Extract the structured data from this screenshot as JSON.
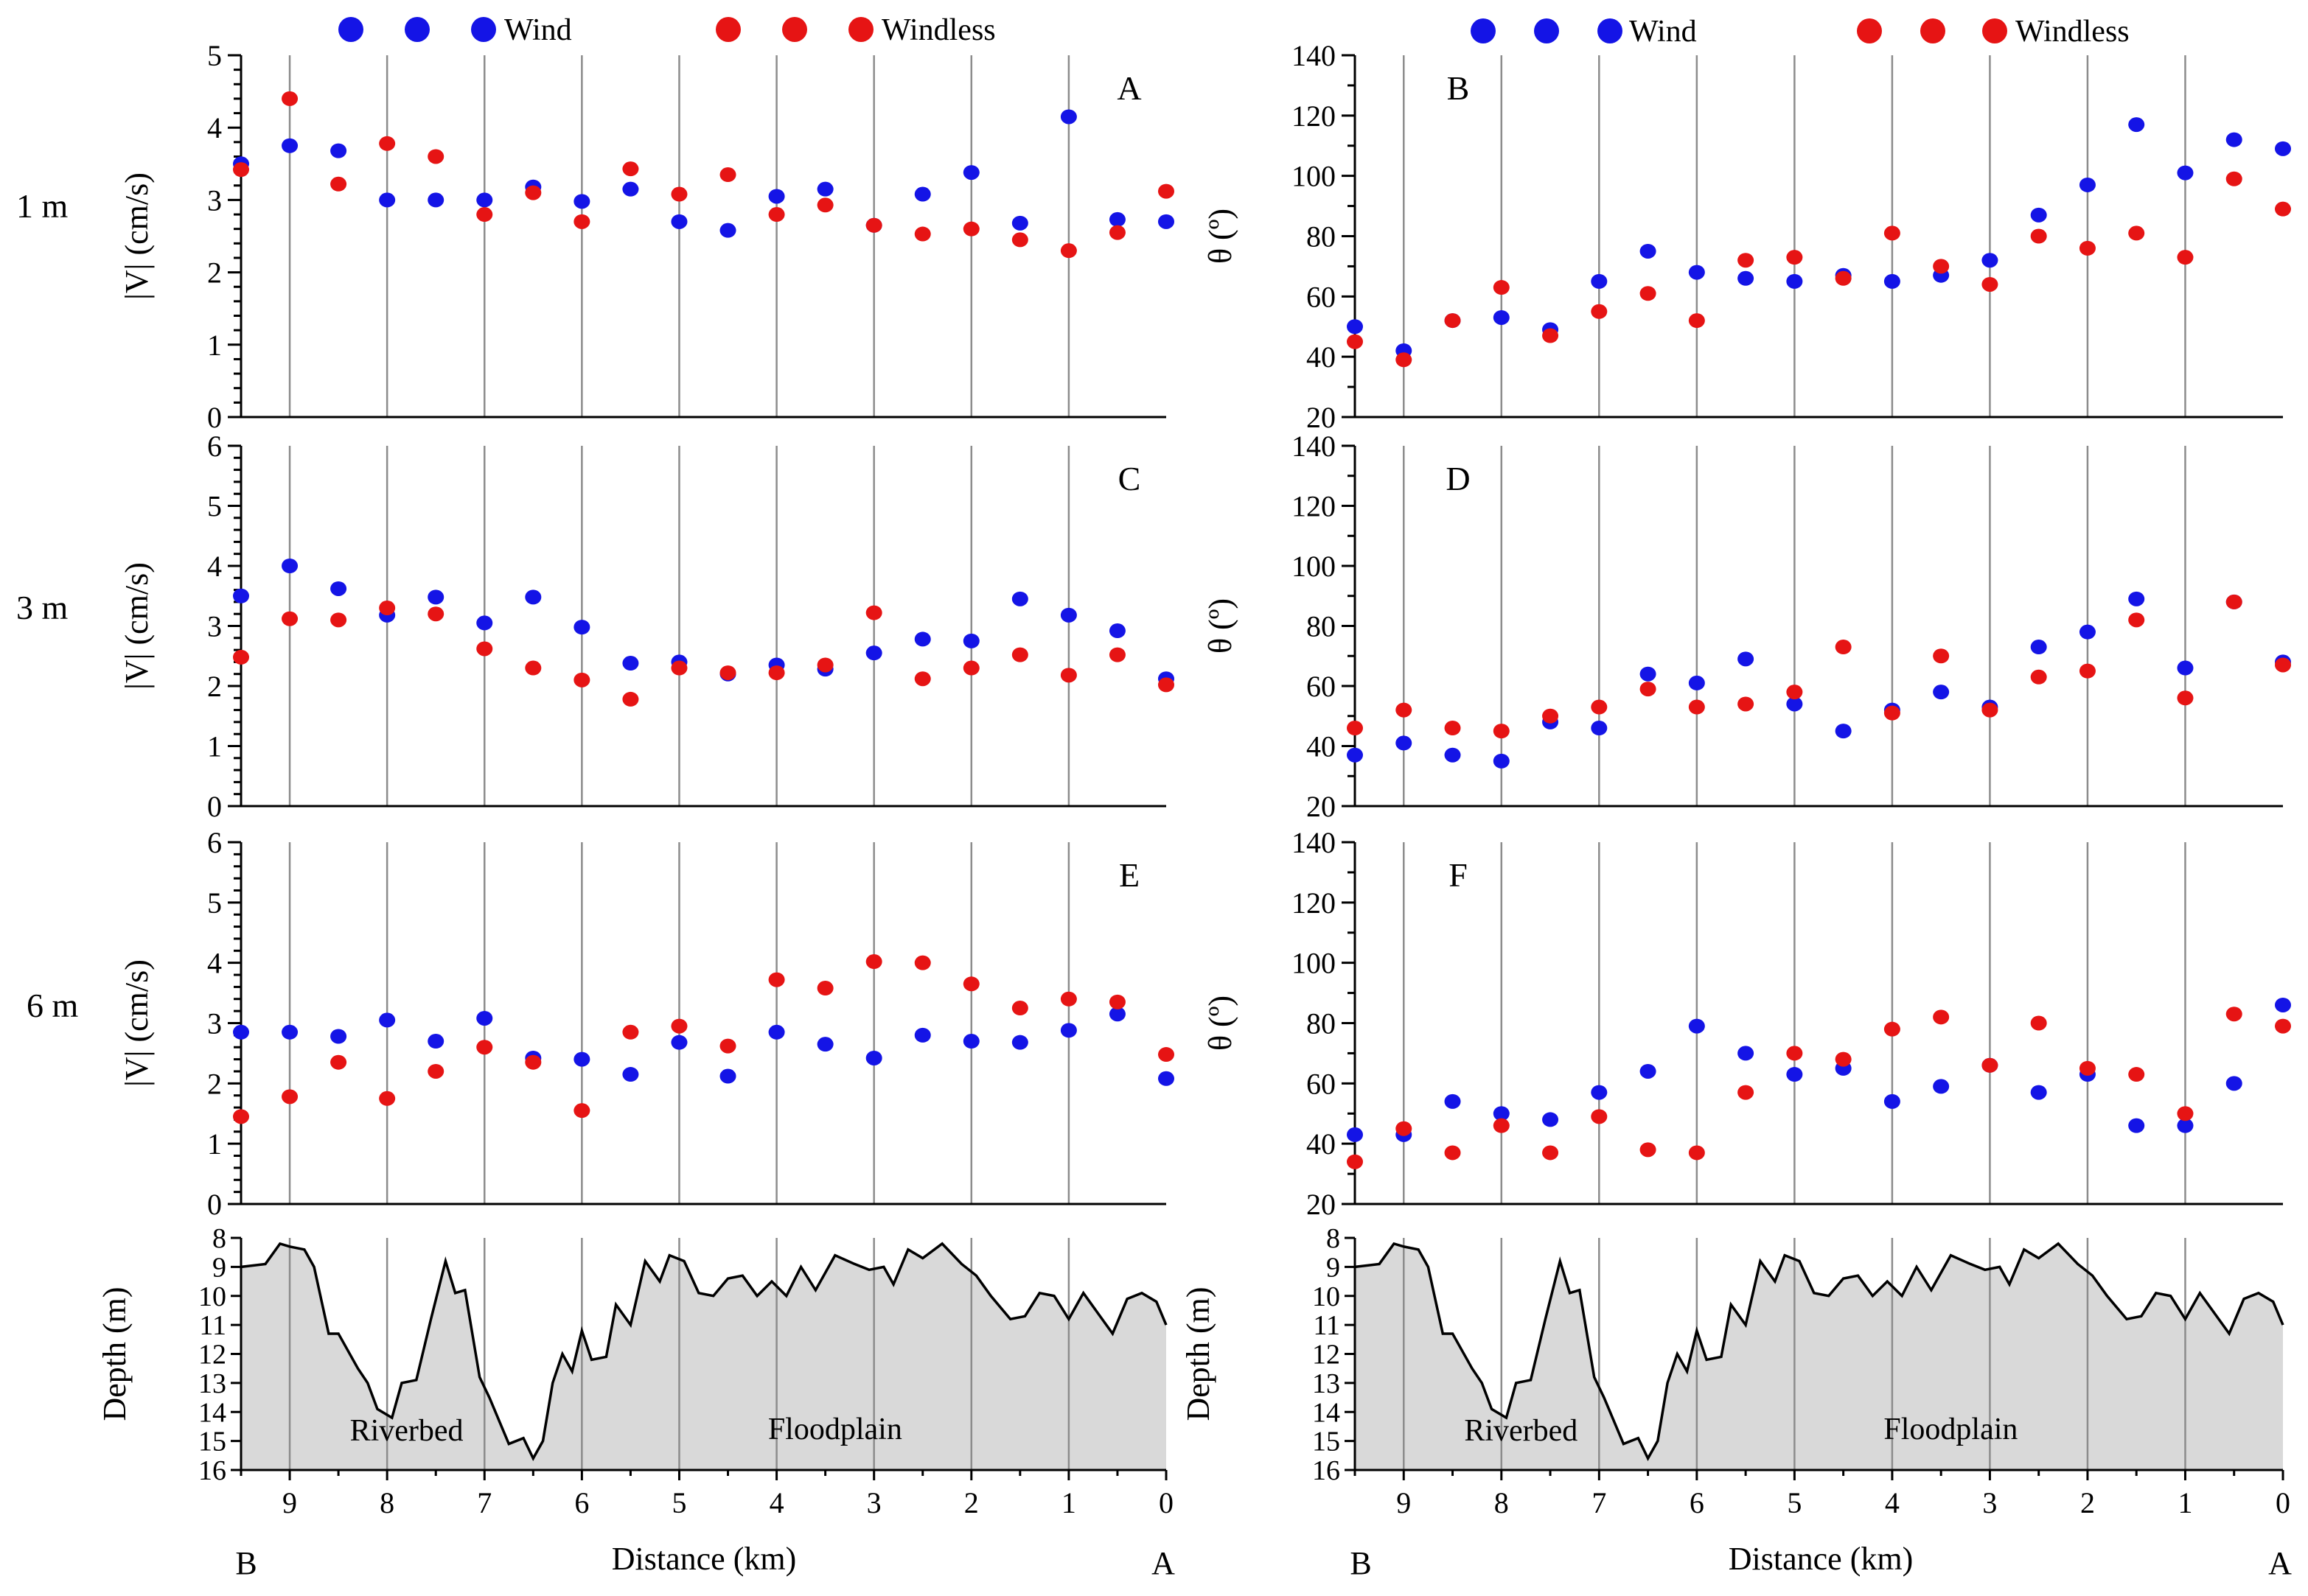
{
  "legend": {
    "wind_label": "Wind",
    "windless_label": "Windless",
    "wind_color": "#1414e6",
    "windless_color": "#e61414"
  },
  "row_labels": [
    "1 m",
    "3 m",
    "6 m"
  ],
  "shared": {
    "xlabel": "Distance (km)",
    "x_ticks": [
      9,
      8,
      7,
      6,
      5,
      4,
      3,
      2,
      1,
      0
    ],
    "end_labels": {
      "left": "B",
      "right": "A",
      "color": "#e61414"
    },
    "xlim": [
      9.5,
      0
    ],
    "x_positions": [
      9.5,
      9.0,
      8.5,
      8.0,
      7.5,
      7.0,
      6.5,
      6.0,
      5.5,
      5.0,
      4.5,
      4.0,
      3.5,
      3.0,
      2.5,
      2.0,
      1.5,
      1.0,
      0.5,
      0.0
    ]
  },
  "chart_data": [
    {
      "id": "A",
      "type": "scatter",
      "panel_label": "A",
      "ylabel": "|V| (cm/s)",
      "ylim": [
        0,
        5
      ],
      "y_ticks": [
        0,
        1,
        2,
        3,
        4,
        5
      ],
      "series": [
        {
          "name": "Wind",
          "values": [
            3.5,
            3.75,
            3.68,
            3.0,
            3.0,
            3.0,
            3.18,
            2.98,
            3.15,
            2.7,
            2.58,
            3.05,
            3.15,
            2.65,
            3.08,
            3.38,
            2.68,
            4.15,
            2.73,
            2.7
          ]
        },
        {
          "name": "Windless",
          "values": [
            3.42,
            4.4,
            3.22,
            3.78,
            3.6,
            2.8,
            3.1,
            2.7,
            3.43,
            3.08,
            3.35,
            2.8,
            2.93,
            2.65,
            2.53,
            2.6,
            2.45,
            2.3,
            2.55,
            3.12
          ]
        }
      ]
    },
    {
      "id": "B",
      "type": "scatter",
      "panel_label": "B",
      "ylabel": "θ (º)",
      "ylim": [
        20,
        140
      ],
      "y_ticks": [
        20,
        40,
        60,
        80,
        100,
        120,
        140
      ],
      "series": [
        {
          "name": "Wind",
          "values": [
            50,
            42,
            52,
            53,
            49,
            65,
            75,
            68,
            66,
            65,
            67,
            65,
            67,
            72,
            87,
            97,
            117,
            101,
            112,
            109
          ]
        },
        {
          "name": "Windless",
          "values": [
            45,
            39,
            52,
            63,
            47,
            55,
            61,
            52,
            72,
            73,
            66,
            81,
            70,
            64,
            80,
            76,
            81,
            73,
            99,
            89
          ]
        }
      ]
    },
    {
      "id": "C",
      "type": "scatter",
      "panel_label": "C",
      "ylabel": "|V| (cm/s)",
      "ylim": [
        0,
        6
      ],
      "y_ticks": [
        0,
        1,
        2,
        3,
        4,
        5,
        6
      ],
      "series": [
        {
          "name": "Wind",
          "values": [
            3.5,
            4.0,
            3.62,
            3.18,
            3.48,
            3.05,
            3.48,
            2.98,
            2.38,
            2.4,
            2.2,
            2.35,
            2.28,
            2.55,
            2.78,
            2.75,
            3.45,
            3.18,
            2.92,
            2.12
          ]
        },
        {
          "name": "Windless",
          "values": [
            2.48,
            3.12,
            3.1,
            3.3,
            3.2,
            2.62,
            2.3,
            2.1,
            1.78,
            2.3,
            2.22,
            2.22,
            2.35,
            3.22,
            2.12,
            2.3,
            2.52,
            2.18,
            2.52,
            2.02
          ]
        }
      ]
    },
    {
      "id": "D",
      "type": "scatter",
      "panel_label": "D",
      "ylabel": "θ (º)",
      "ylim": [
        20,
        140
      ],
      "y_ticks": [
        20,
        40,
        60,
        80,
        100,
        120,
        140
      ],
      "series": [
        {
          "name": "Wind",
          "values": [
            37,
            41,
            37,
            35,
            48,
            46,
            64,
            61,
            69,
            54,
            45,
            52,
            58,
            53,
            73,
            78,
            89,
            66,
            88,
            68
          ]
        },
        {
          "name": "Windless",
          "values": [
            46,
            52,
            46,
            45,
            50,
            53,
            59,
            53,
            54,
            58,
            73,
            51,
            70,
            52,
            63,
            65,
            82,
            56,
            88,
            67
          ]
        }
      ]
    },
    {
      "id": "E",
      "type": "scatter",
      "panel_label": "E",
      "ylabel": "|V| (cm/s)",
      "ylim": [
        0,
        6
      ],
      "y_ticks": [
        0,
        1,
        2,
        3,
        4,
        5,
        6
      ],
      "series": [
        {
          "name": "Wind",
          "values": [
            2.85,
            2.85,
            2.78,
            3.05,
            2.7,
            3.08,
            2.42,
            2.4,
            2.15,
            2.68,
            2.12,
            2.85,
            2.65,
            2.42,
            2.8,
            2.7,
            2.68,
            2.88,
            3.15,
            2.08
          ]
        },
        {
          "name": "Windless",
          "values": [
            1.45,
            1.78,
            2.35,
            1.75,
            2.2,
            2.6,
            2.35,
            1.55,
            2.85,
            2.95,
            2.62,
            3.72,
            3.58,
            4.02,
            4.0,
            3.65,
            3.25,
            3.4,
            3.35,
            2.48
          ]
        }
      ]
    },
    {
      "id": "F",
      "type": "scatter",
      "panel_label": "F",
      "ylabel": "θ (º)",
      "ylim": [
        20,
        140
      ],
      "y_ticks": [
        20,
        40,
        60,
        80,
        100,
        120,
        140
      ],
      "series": [
        {
          "name": "Wind",
          "values": [
            43,
            43,
            54,
            50,
            48,
            57,
            64,
            79,
            70,
            63,
            65,
            54,
            59,
            66,
            57,
            63,
            46,
            46,
            60,
            86
          ]
        },
        {
          "name": "Windless",
          "values": [
            34,
            45,
            37,
            46,
            37,
            49,
            38,
            37,
            57,
            70,
            68,
            78,
            82,
            66,
            80,
            65,
            63,
            50,
            83,
            79
          ]
        }
      ]
    },
    {
      "id": "depth-left",
      "type": "area",
      "ylabel": "Depth (m)",
      "xlabel": "Distance (km)",
      "ylim": [
        16,
        8
      ],
      "y_ticks": [
        8,
        9,
        10,
        11,
        12,
        13,
        14,
        15,
        16
      ],
      "region_labels": [
        "Riverbed",
        "Floodplain"
      ],
      "x": [
        9.5,
        9.25,
        9.1,
        9.0,
        8.85,
        8.75,
        8.6,
        8.5,
        8.3,
        8.2,
        8.1,
        7.95,
        7.85,
        7.7,
        7.55,
        7.4,
        7.3,
        7.2,
        7.05,
        6.95,
        6.75,
        6.6,
        6.5,
        6.4,
        6.3,
        6.2,
        6.1,
        6.0,
        5.9,
        5.75,
        5.65,
        5.5,
        5.35,
        5.2,
        5.1,
        4.95,
        4.8,
        4.65,
        4.5,
        4.35,
        4.2,
        4.05,
        3.9,
        3.75,
        3.6,
        3.4,
        3.2,
        3.05,
        2.9,
        2.8,
        2.65,
        2.5,
        2.3,
        2.1,
        1.95,
        1.8,
        1.6,
        1.45,
        1.3,
        1.15,
        1.0,
        0.85,
        0.7,
        0.55,
        0.4,
        0.25,
        0.1,
        0.0
      ],
      "depth": [
        9.0,
        8.9,
        8.2,
        8.3,
        8.4,
        9.0,
        11.3,
        11.3,
        12.5,
        13.0,
        13.9,
        14.2,
        13.0,
        12.9,
        10.8,
        8.8,
        9.9,
        9.8,
        12.8,
        13.5,
        15.1,
        14.9,
        15.6,
        15.0,
        13.0,
        12.0,
        12.6,
        11.2,
        12.2,
        12.1,
        10.3,
        11.0,
        8.8,
        9.5,
        8.6,
        8.8,
        9.9,
        10.0,
        9.4,
        9.3,
        10.0,
        9.5,
        10.0,
        9.0,
        9.8,
        8.6,
        8.9,
        9.1,
        9.0,
        9.6,
        8.4,
        8.7,
        8.2,
        8.9,
        9.3,
        10.0,
        10.8,
        10.7,
        9.9,
        10.0,
        10.8,
        9.9,
        10.6,
        11.3,
        10.1,
        9.9,
        10.2,
        11.0
      ],
      "x_end": 0.0
    },
    {
      "id": "depth-right",
      "type": "area",
      "ylabel": "Depth (m)",
      "xlabel": "Distance (km)",
      "ylim": [
        16,
        8
      ],
      "y_ticks": [
        8,
        9,
        10,
        11,
        12,
        13,
        14,
        15,
        16
      ],
      "region_labels": [
        "Riverbed",
        "Floodplain"
      ],
      "same_profile_as": "depth-left"
    }
  ]
}
